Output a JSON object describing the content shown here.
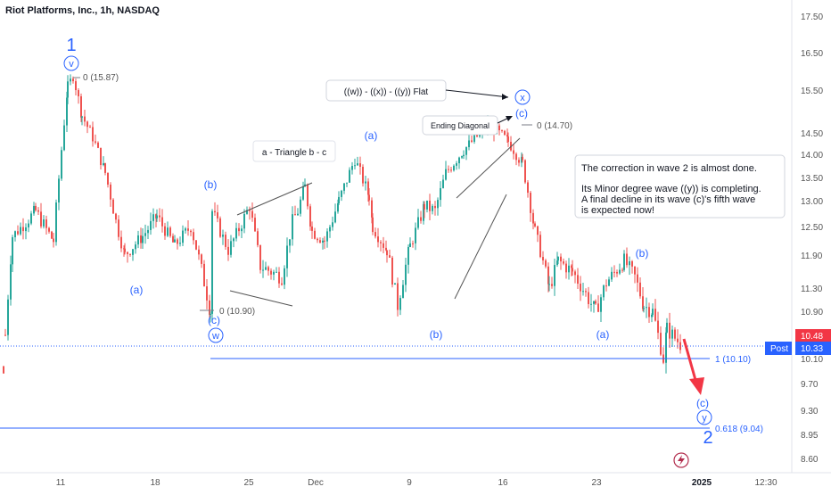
{
  "header": {
    "title": "Riot Platforms, Inc., 1h, NASDAQ"
  },
  "chart_data": {
    "type": "candlestick",
    "symbol": "Riot Platforms, Inc.",
    "interval": "1h",
    "exchange": "NASDAQ",
    "ylim": [
      8.4,
      17.8
    ],
    "y_ticks": [
      "17.50",
      "16.50",
      "15.50",
      "14.50",
      "14.00",
      "13.50",
      "13.00",
      "12.50",
      "11.90",
      "11.30",
      "10.90",
      "10.10",
      "9.70",
      "9.30",
      "8.95",
      "8.60"
    ],
    "x_ticks": [
      "11",
      "18",
      "25",
      "Dec",
      "9",
      "16",
      "23",
      "2025",
      "12:30"
    ],
    "price_labels": {
      "last": "10.48",
      "post_label": "Post",
      "post": "10.33"
    },
    "colors": {
      "up": "#26a69a",
      "down": "#ef5350",
      "wave": "#2962ff",
      "level": "#2962ff",
      "last_price": "#f23645",
      "post": "#2962ff"
    },
    "ohlc_anchors": [
      [
        "11-08",
        10.5
      ],
      [
        "11-08b",
        12.3
      ],
      [
        "11-08c",
        12.8
      ],
      [
        "11-09",
        12.2
      ],
      [
        "11-11",
        15.6
      ],
      [
        "11-11b",
        15.87
      ],
      [
        "11-11c",
        14.9
      ],
      [
        "11-12",
        14.4
      ],
      [
        "11-13",
        13.6
      ],
      [
        "11-14",
        12.6
      ],
      [
        "11-15",
        11.9
      ],
      [
        "11-18",
        12.3
      ],
      [
        "11-19",
        12.7
      ],
      [
        "11-20",
        12.1
      ],
      [
        "11-21",
        12.5
      ],
      [
        "11-22",
        10.9
      ],
      [
        "11-22b",
        12.8
      ],
      [
        "11-25",
        12.0
      ],
      [
        "11-26",
        12.9
      ],
      [
        "11-26b",
        11.7
      ],
      [
        "11-27",
        11.5
      ],
      [
        "11-27b",
        12.6
      ],
      [
        "11-29",
        12.8
      ],
      [
        "12-02",
        13.3
      ],
      [
        "12-03",
        12.4
      ],
      [
        "12-04",
        12.2
      ],
      [
        "12-05",
        13.0
      ],
      [
        "12-06",
        13.9
      ],
      [
        "12-06b",
        13.1
      ],
      [
        "12-09",
        12.5
      ],
      [
        "12-10",
        12.0
      ],
      [
        "12-10b",
        11.0
      ],
      [
        "12-11",
        12.1
      ],
      [
        "12-12",
        12.9
      ],
      [
        "12-13",
        12.8
      ],
      [
        "12-13b",
        13.6
      ],
      [
        "12-16",
        14.1
      ],
      [
        "12-17",
        14.7
      ],
      [
        "12-17b",
        14.3
      ],
      [
        "12-18",
        13.8
      ],
      [
        "12-19",
        12.4
      ],
      [
        "12-20",
        11.3
      ],
      [
        "12-20b",
        11.8
      ],
      [
        "12-23",
        11.6
      ],
      [
        "12-23b",
        10.9
      ],
      [
        "12-24",
        11.4
      ],
      [
        "12-26",
        11.8
      ],
      [
        "12-26b",
        11.5
      ],
      [
        "12-27",
        11.0
      ],
      [
        "12-27b",
        10.9
      ],
      [
        "12-30",
        10.1
      ],
      [
        "12-30b",
        10.6
      ],
      [
        "12-31",
        10.33
      ]
    ],
    "levels": [
      {
        "label": "0 (15.87)",
        "value": 15.87
      },
      {
        "label": "0 (14.70)",
        "value": 14.7
      },
      {
        "label": "0 (10.90)",
        "value": 10.9
      },
      {
        "label": "1 (10.10)",
        "value": 10.1
      },
      {
        "label": "0.618 (9.04)",
        "value": 9.04
      }
    ],
    "wave_labels": [
      "1",
      "v",
      "(b)",
      "(a)",
      "(c)",
      "w",
      "(a)",
      "(b)",
      "x",
      "(c)",
      "(a)",
      "(b)",
      "(c)",
      "y",
      "2"
    ],
    "callouts": {
      "flat": "((w)) - ((x)) - ((y)) Flat",
      "ending_diagonal": "Ending Diagonal",
      "triangle": "a - Triangle b - c",
      "note_line1": "The correction in wave 2 is almost done.",
      "note_line2": "Its Minor degree wave ((y)) is completing.",
      "note_line3": "A final decline in its wave (c)'s fifth wave",
      "note_line4": "is expected now!"
    }
  }
}
